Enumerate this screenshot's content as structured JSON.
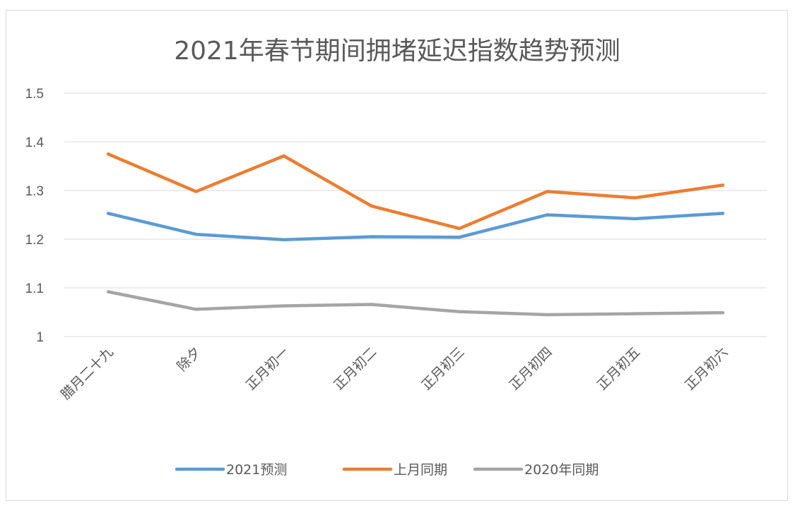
{
  "chart_data": {
    "type": "line",
    "title": "2021年春节期间拥堵延迟指数趋势预测",
    "categories": [
      "腊月二十九",
      "除夕",
      "正月初一",
      "正月初二",
      "正月初三",
      "正月初四",
      "正月初五",
      "正月初六"
    ],
    "y_ticks": [
      "1",
      "1.1",
      "1.2",
      "1.3",
      "1.4",
      "1.5"
    ],
    "ylim": [
      1,
      1.5
    ],
    "grid": true,
    "legend_position": "bottom",
    "series": [
      {
        "name": "2021预测",
        "color": "#5b9bd5",
        "values": [
          1.253,
          1.21,
          1.199,
          1.205,
          1.204,
          1.25,
          1.242,
          1.253
        ]
      },
      {
        "name": "上月同期",
        "color": "#ed7d31",
        "values": [
          1.375,
          1.298,
          1.371,
          1.268,
          1.222,
          1.298,
          1.285,
          1.311
        ]
      },
      {
        "name": "2020年同期",
        "color": "#a5a5a5",
        "values": [
          1.092,
          1.056,
          1.063,
          1.066,
          1.051,
          1.045,
          1.047,
          1.049
        ]
      }
    ]
  }
}
